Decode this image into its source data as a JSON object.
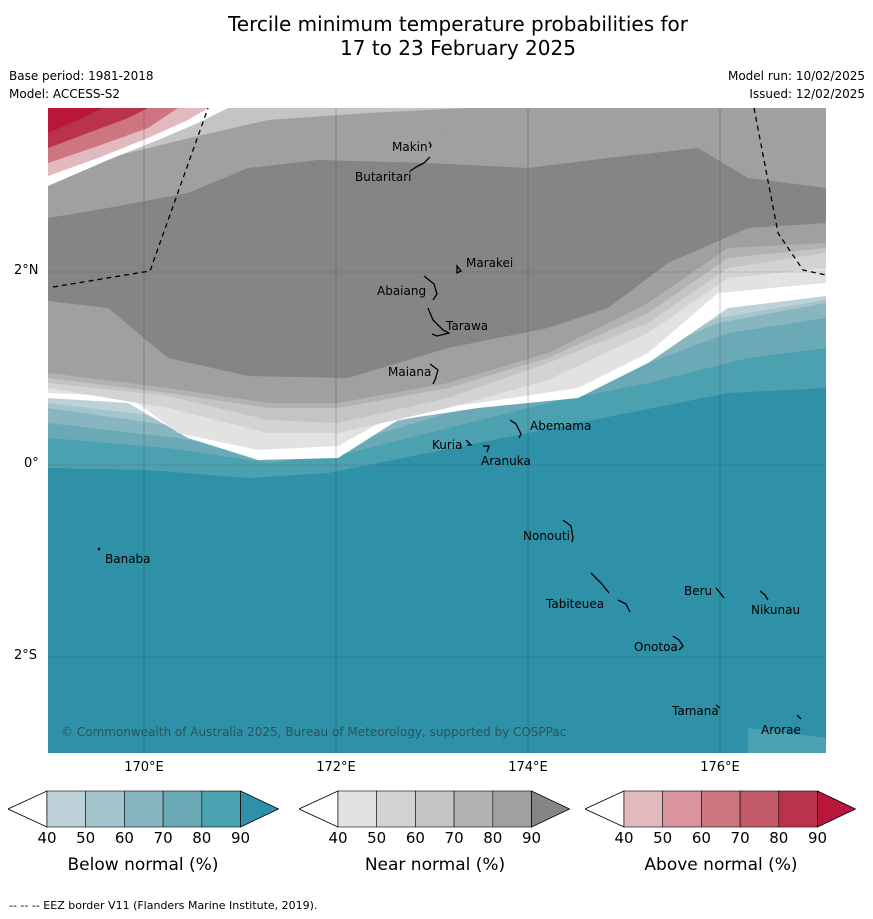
{
  "title_line1": "Tercile minimum temperature probabilities for",
  "title_line2": "17 to 23 February 2025",
  "meta": {
    "base_period": "Base period: 1981-2018",
    "model": "Model: ACCESS-S2",
    "model_run": "Model run: 10/02/2025",
    "issued": "Issued: 12/02/2025"
  },
  "axes": {
    "lat_ticks": [
      "2°N",
      "0°",
      "2°S"
    ],
    "lon_ticks": [
      "170°E",
      "172°E",
      "174°E",
      "176°E"
    ]
  },
  "places": [
    {
      "name": "Makin"
    },
    {
      "name": "Butaritari"
    },
    {
      "name": "Marakei"
    },
    {
      "name": "Abaiang"
    },
    {
      "name": "Tarawa"
    },
    {
      "name": "Maiana"
    },
    {
      "name": "Abemama"
    },
    {
      "name": "Kuria"
    },
    {
      "name": "Aranuka"
    },
    {
      "name": "Banaba"
    },
    {
      "name": "Nonouti"
    },
    {
      "name": "Beru"
    },
    {
      "name": "Tabiteuea"
    },
    {
      "name": "Nikunau"
    },
    {
      "name": "Onotoa"
    },
    {
      "name": "Tamana"
    },
    {
      "name": "Arorae"
    }
  ],
  "copyright": "© Commonwealth of Australia 2025, Bureau of Meteorology, supported by COSPPac",
  "colorbars": [
    {
      "label": "Below normal (%)",
      "ticks": [
        "40",
        "50",
        "60",
        "70",
        "80",
        "90"
      ],
      "colors": [
        "#ffffff",
        "#bcd1d8",
        "#a5c5cc",
        "#88b6c0",
        "#6aaab7",
        "#4ba1b0",
        "#2e91a7"
      ]
    },
    {
      "label": "Near normal (%)",
      "ticks": [
        "40",
        "50",
        "60",
        "70",
        "80",
        "90"
      ],
      "colors": [
        "#ffffff",
        "#e2e2e2",
        "#d3d3d3",
        "#c4c4c4",
        "#b2b2b2",
        "#a0a0a0",
        "#858585"
      ]
    },
    {
      "label": "Above normal (%)",
      "ticks": [
        "40",
        "50",
        "60",
        "70",
        "80",
        "90"
      ],
      "colors": [
        "#ffffff",
        "#e3b9c0",
        "#d9949d",
        "#cd7580",
        "#c35a68",
        "#b9334a",
        "#b8163b"
      ]
    }
  ],
  "footer": "--  --  -- EEZ border V11 (Flanders Marine Institute, 2019)."
}
